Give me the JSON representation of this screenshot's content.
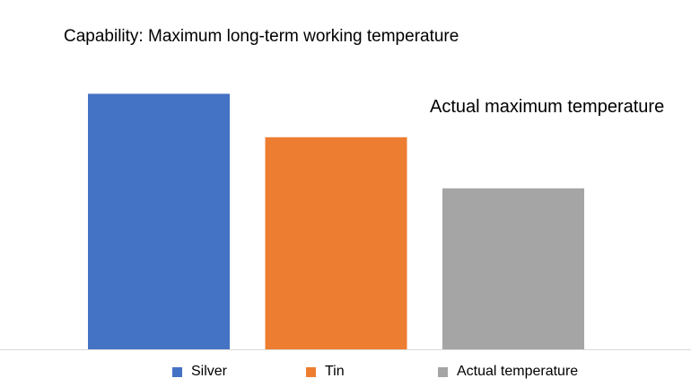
{
  "chart_data": {
    "type": "bar",
    "title": "Capability: Maximum long-term working temperature",
    "annotation": "Actual maximum temperature",
    "xlabel": "",
    "ylabel": "",
    "ylim": [
      0,
      110
    ],
    "grid": false,
    "legend_position": "bottom",
    "categories": [
      "Silver",
      "Tin",
      "Actual temperature"
    ],
    "values": [
      100,
      83,
      63
    ],
    "colors": [
      "#4472C4",
      "#ED7D31",
      "#A5A5A5"
    ],
    "axis_color": "#D9D9D9"
  }
}
